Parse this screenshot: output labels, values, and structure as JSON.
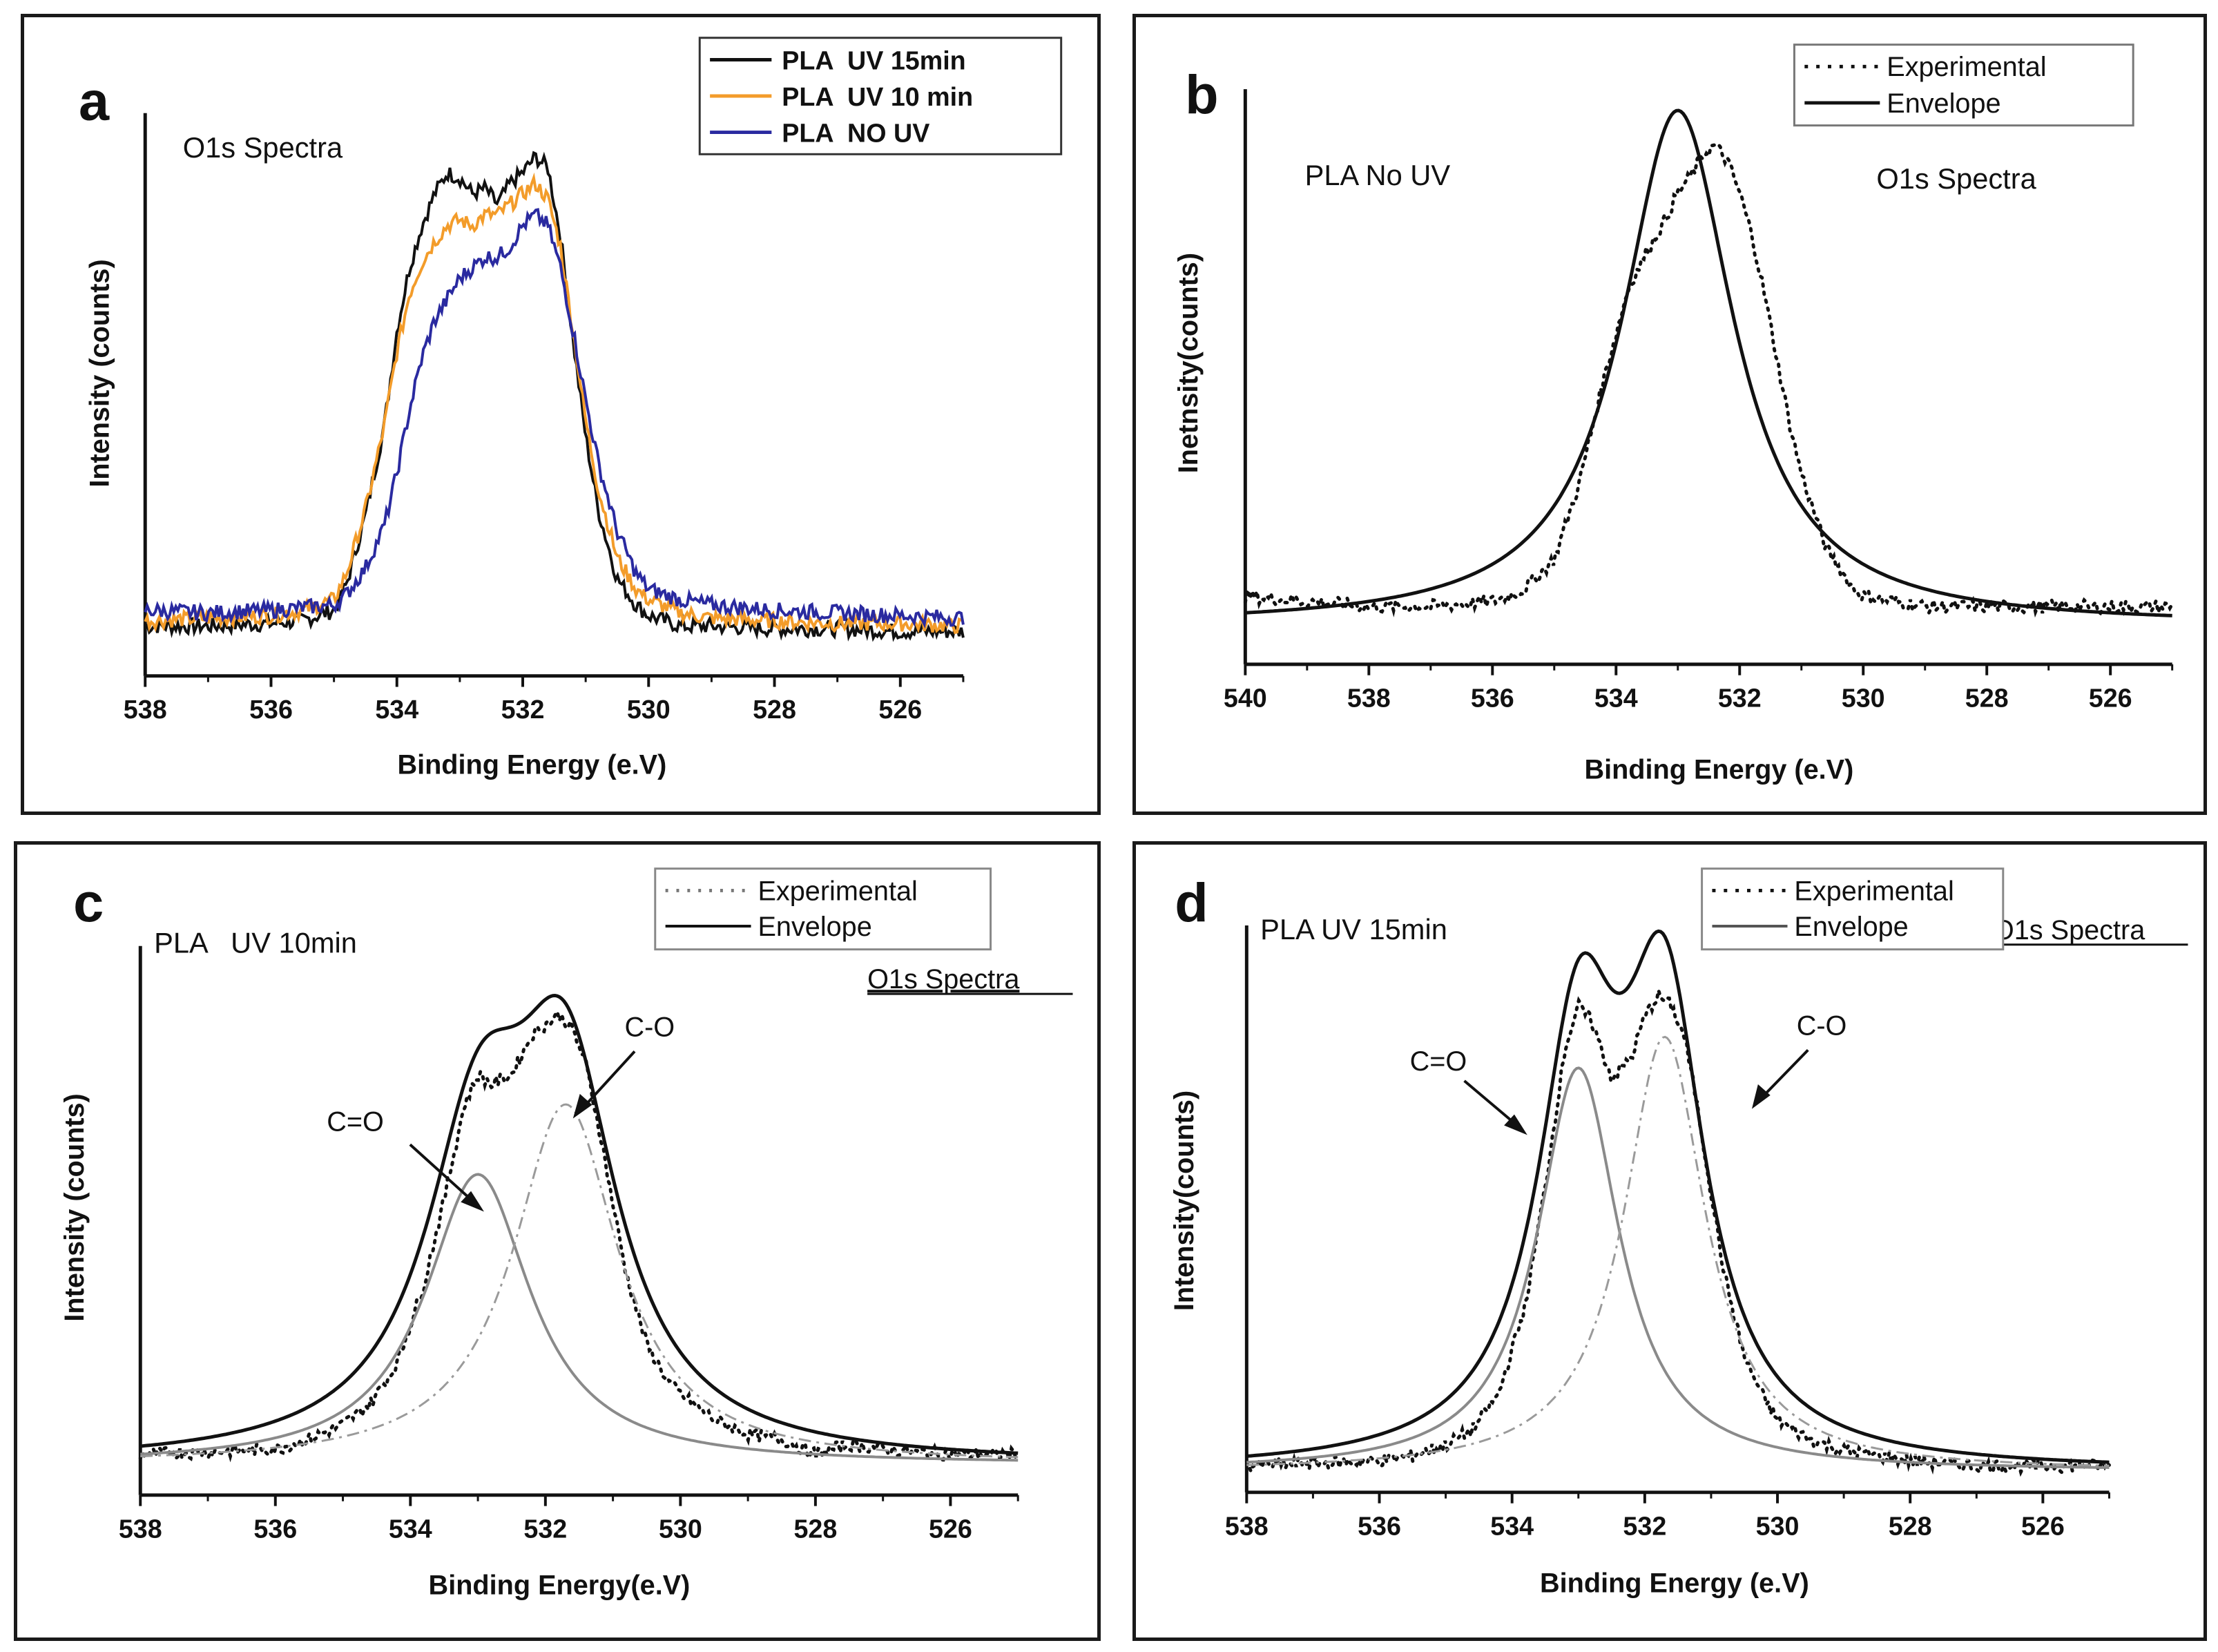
{
  "chart_data": [
    {
      "panel": "a",
      "type": "line",
      "title": "O1s Spectra",
      "xlabel": "Binding Energy (e.V)",
      "ylabel": "Intensity (counts)",
      "xlim": [
        538,
        525
      ],
      "ylim": [
        0,
        1.0
      ],
      "xticks": [
        538,
        536,
        534,
        532,
        530,
        528,
        526
      ],
      "legend_position": "top-right",
      "series": [
        {
          "name": "PLA  UV 15min",
          "color": "#111111",
          "x": [
            538,
            537,
            536,
            535.5,
            535,
            534.8,
            534.5,
            534.2,
            534,
            533.8,
            533.6,
            533.4,
            533.2,
            533,
            532.8,
            532.6,
            532.4,
            532.2,
            532,
            531.8,
            531.6,
            531.4,
            531.2,
            531,
            530.8,
            530.5,
            530.2,
            530,
            529.5,
            529,
            528,
            527,
            526,
            525
          ],
          "y": [
            0.04,
            0.04,
            0.045,
            0.05,
            0.07,
            0.12,
            0.25,
            0.42,
            0.6,
            0.72,
            0.8,
            0.86,
            0.9,
            0.89,
            0.86,
            0.87,
            0.84,
            0.88,
            0.9,
            0.93,
            0.91,
            0.78,
            0.58,
            0.4,
            0.26,
            0.13,
            0.08,
            0.06,
            0.04,
            0.04,
            0.035,
            0.035,
            0.03,
            0.03
          ]
        },
        {
          "name": "PLA  UV 10 min",
          "color": "#f39c2a",
          "x": [
            538,
            537,
            536,
            535.5,
            535,
            534.8,
            534.5,
            534.2,
            534,
            533.8,
            533.6,
            533.4,
            533.2,
            533,
            532.8,
            532.6,
            532.4,
            532.2,
            532,
            531.8,
            531.6,
            531.4,
            531.2,
            531,
            530.8,
            530.5,
            530.2,
            530,
            529.5,
            529,
            528,
            527,
            526,
            525
          ],
          "y": [
            0.05,
            0.055,
            0.06,
            0.07,
            0.09,
            0.14,
            0.26,
            0.42,
            0.56,
            0.67,
            0.73,
            0.77,
            0.8,
            0.81,
            0.8,
            0.82,
            0.82,
            0.84,
            0.86,
            0.88,
            0.85,
            0.76,
            0.6,
            0.43,
            0.3,
            0.17,
            0.11,
            0.09,
            0.065,
            0.055,
            0.05,
            0.045,
            0.045,
            0.04
          ]
        },
        {
          "name": "PLA  NO UV",
          "color": "#2a2aa0",
          "x": [
            538,
            537,
            536,
            535.5,
            535,
            534.8,
            534.5,
            534.2,
            534,
            533.8,
            533.6,
            533.4,
            533.2,
            533,
            532.8,
            532.6,
            532.4,
            532.2,
            532,
            531.8,
            531.6,
            531.4,
            531.2,
            531,
            530.8,
            530.5,
            530.2,
            530,
            529.5,
            529,
            528,
            527,
            526,
            525
          ],
          "y": [
            0.07,
            0.065,
            0.07,
            0.075,
            0.08,
            0.1,
            0.15,
            0.23,
            0.33,
            0.45,
            0.55,
            0.62,
            0.66,
            0.7,
            0.72,
            0.74,
            0.74,
            0.76,
            0.8,
            0.82,
            0.8,
            0.72,
            0.6,
            0.47,
            0.35,
            0.22,
            0.14,
            0.11,
            0.09,
            0.08,
            0.07,
            0.065,
            0.06,
            0.055
          ]
        }
      ]
    },
    {
      "panel": "b",
      "type": "line",
      "title": "O1s Spectra",
      "annotation": "PLA No UV",
      "xlabel": "Binding Energy (e.V)",
      "ylabel": "Inetnsity(counts)",
      "xlim": [
        540,
        525
      ],
      "ylim": [
        0,
        1.0
      ],
      "xticks": [
        540,
        538,
        536,
        534,
        532,
        530,
        528,
        526
      ],
      "legend_position": "top-right",
      "series": [
        {
          "name": "Experimental",
          "style": "dotted",
          "x": [
            540,
            539,
            538,
            537,
            536,
            535.5,
            535,
            534.6,
            534.2,
            533.8,
            533.5,
            533.2,
            533,
            532.8,
            532.6,
            532.4,
            532.2,
            532,
            531.8,
            531.6,
            531.4,
            531.2,
            531,
            530.6,
            530.2,
            530,
            529.5,
            529,
            528,
            527,
            526,
            525
          ],
          "y": [
            0.09,
            0.08,
            0.07,
            0.07,
            0.08,
            0.1,
            0.16,
            0.3,
            0.5,
            0.67,
            0.74,
            0.8,
            0.85,
            0.88,
            0.92,
            0.94,
            0.91,
            0.85,
            0.77,
            0.66,
            0.54,
            0.42,
            0.32,
            0.18,
            0.11,
            0.09,
            0.08,
            0.07,
            0.07,
            0.07,
            0.07,
            0.07
          ]
        },
        {
          "name": "Envelope",
          "style": "solid",
          "peaks": [
            {
              "center": 533.0,
              "height": 0.97,
              "width": 1.1
            }
          ],
          "baseline": 0.035
        }
      ]
    },
    {
      "panel": "c",
      "type": "line",
      "title": "O1s Spectra",
      "annotation": "PLA   UV 10min",
      "peak_labels": [
        "C=O",
        "C-O"
      ],
      "xlabel": "Binding Energy(e.V)",
      "ylabel": "Intensity (counts)",
      "xlim": [
        538,
        525
      ],
      "ylim": [
        0,
        1.0
      ],
      "xticks": [
        538,
        536,
        534,
        532,
        530,
        528,
        526
      ],
      "legend_position": "top-right",
      "series": [
        {
          "name": "Experimental",
          "style": "dotted",
          "x": [
            538,
            537,
            536,
            535.5,
            535,
            534.6,
            534.2,
            533.8,
            533.5,
            533.2,
            533,
            532.8,
            532.5,
            532.2,
            532,
            531.8,
            531.6,
            531.4,
            531.2,
            531,
            530.8,
            530.5,
            530.2,
            530,
            529.5,
            529,
            528.5,
            528,
            527.5,
            527,
            526,
            525
          ],
          "y": [
            0.02,
            0.025,
            0.03,
            0.05,
            0.08,
            0.12,
            0.2,
            0.36,
            0.53,
            0.72,
            0.78,
            0.76,
            0.78,
            0.86,
            0.88,
            0.9,
            0.87,
            0.8,
            0.67,
            0.52,
            0.38,
            0.24,
            0.17,
            0.14,
            0.09,
            0.06,
            0.05,
            0.02,
            0.04,
            0.03,
            0.02,
            0.02
          ]
        },
        {
          "name": "Envelope",
          "style": "solid",
          "peaks": [
            {
              "center": 533.0,
              "height": 0.58,
              "width": 0.95
            },
            {
              "center": 531.7,
              "height": 0.72,
              "width": 0.95
            }
          ],
          "baseline": 0.0
        },
        {
          "name": "C=O component",
          "style": "solid-gray",
          "peaks": [
            {
              "center": 533.0,
              "height": 0.58,
              "width": 0.95
            }
          ],
          "baseline": 0.0
        },
        {
          "name": "C-O component",
          "style": "dashdot",
          "peaks": [
            {
              "center": 531.7,
              "height": 0.72,
              "width": 0.95
            }
          ],
          "baseline": 0.0
        }
      ]
    },
    {
      "panel": "d",
      "type": "line",
      "title": "O1s Spectra",
      "annotation": "PLA UV 15min",
      "peak_labels": [
        "C=O",
        "C-O"
      ],
      "xlabel": "Binding Energy (e.V)",
      "ylabel": "Intensity(counts)",
      "xlim": [
        538,
        525
      ],
      "ylim": [
        0,
        1.0
      ],
      "xticks": [
        538,
        536,
        534,
        532,
        530,
        528,
        526
      ],
      "legend_position": "top-right",
      "series": [
        {
          "name": "Experimental",
          "style": "dotted",
          "x": [
            538,
            537,
            536,
            535.5,
            535,
            534.6,
            534.2,
            533.8,
            533.5,
            533.2,
            533,
            532.8,
            532.5,
            532.2,
            532,
            531.8,
            531.6,
            531.4,
            531.2,
            531,
            530.8,
            530.5,
            530.2,
            530,
            529.5,
            529,
            528,
            527,
            526,
            525
          ],
          "y": [
            0.01,
            0.015,
            0.02,
            0.03,
            0.05,
            0.08,
            0.15,
            0.32,
            0.55,
            0.82,
            0.9,
            0.87,
            0.76,
            0.8,
            0.88,
            0.92,
            0.9,
            0.84,
            0.7,
            0.54,
            0.38,
            0.22,
            0.14,
            0.1,
            0.06,
            0.04,
            0.02,
            0.01,
            0.01,
            0.01
          ]
        },
        {
          "name": "Envelope",
          "style": "solid",
          "peaks": [
            {
              "center": 533.0,
              "height": 0.78,
              "width": 0.75
            },
            {
              "center": 531.7,
              "height": 0.84,
              "width": 0.75
            }
          ],
          "baseline": 0.0
        },
        {
          "name": "C=O component",
          "style": "solid-gray",
          "peaks": [
            {
              "center": 533.0,
              "height": 0.78,
              "width": 0.75
            }
          ],
          "baseline": 0.0
        },
        {
          "name": "C-O component",
          "style": "dashdot",
          "peaks": [
            {
              "center": 531.7,
              "height": 0.84,
              "width": 0.75
            }
          ],
          "baseline": 0.0
        }
      ]
    }
  ],
  "panel_labels": {
    "a": "a",
    "b": "b",
    "c": "c",
    "d": "d"
  }
}
